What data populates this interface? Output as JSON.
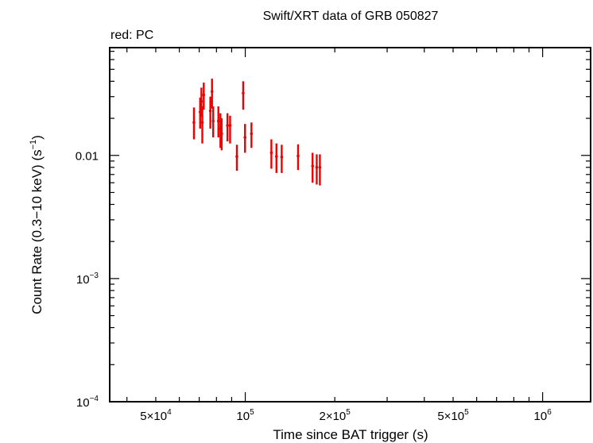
{
  "chart_data": {
    "type": "scatter",
    "title": "Swift/XRT data of GRB 050827",
    "subtitle": "red: PC",
    "xlabel": "Time since BAT trigger (s)",
    "ylabel_parts": {
      "main": "Count Rate (0.3−10 keV) (s",
      "sup": "−1",
      "end": ")"
    },
    "xscale": "log",
    "yscale": "log",
    "xlim": [
      35000,
      1450000
    ],
    "ylim": [
      0.0001,
      0.075
    ],
    "x_ticks": [
      {
        "value": 50000,
        "mant": "5×10",
        "exp": "4"
      },
      {
        "value": 100000,
        "mant": "10",
        "exp": "5"
      },
      {
        "value": 200000,
        "mant": "2×10",
        "exp": "5"
      },
      {
        "value": 500000,
        "mant": "5×10",
        "exp": "5"
      },
      {
        "value": 1000000,
        "mant": "10",
        "exp": "6"
      }
    ],
    "y_ticks": [
      {
        "value": 0.01,
        "mant": "0.01",
        "exp": ""
      },
      {
        "value": 0.001,
        "mant": "10",
        "exp": "−3"
      },
      {
        "value": 0.0001,
        "mant": "10",
        "exp": "−4"
      }
    ],
    "color": "#ee0000",
    "series": [
      {
        "points": [
          {
            "x": 67200,
            "y": 0.0185,
            "xlo": 66700,
            "xhi": 67700,
            "ylo": 0.0135,
            "yhi": 0.0245
          },
          {
            "x": 70500,
            "y": 0.0225,
            "xlo": 70100,
            "xhi": 70900,
            "ylo": 0.0165,
            "yhi": 0.0295
          },
          {
            "x": 71200,
            "y": 0.0275,
            "xlo": 70800,
            "xhi": 71600,
            "ylo": 0.0205,
            "yhi": 0.0355
          },
          {
            "x": 71700,
            "y": 0.0185,
            "xlo": 71300,
            "xhi": 72100,
            "ylo": 0.0125,
            "yhi": 0.025
          },
          {
            "x": 72500,
            "y": 0.031,
            "xlo": 72100,
            "xhi": 72900,
            "ylo": 0.0235,
            "yhi": 0.039
          },
          {
            "x": 76300,
            "y": 0.023,
            "xlo": 75900,
            "xhi": 76700,
            "ylo": 0.0165,
            "yhi": 0.03
          },
          {
            "x": 77300,
            "y": 0.033,
            "xlo": 76900,
            "xhi": 77700,
            "ylo": 0.024,
            "yhi": 0.042
          },
          {
            "x": 78000,
            "y": 0.019,
            "xlo": 77600,
            "xhi": 78400,
            "ylo": 0.014,
            "yhi": 0.025
          },
          {
            "x": 81200,
            "y": 0.019,
            "xlo": 80800,
            "xhi": 81600,
            "ylo": 0.014,
            "yhi": 0.025
          },
          {
            "x": 82500,
            "y": 0.0165,
            "xlo": 82100,
            "xhi": 82900,
            "ylo": 0.0115,
            "yhi": 0.022
          },
          {
            "x": 83300,
            "y": 0.015,
            "xlo": 82900,
            "xhi": 83700,
            "ylo": 0.011,
            "yhi": 0.02
          },
          {
            "x": 87100,
            "y": 0.0175,
            "xlo": 86700,
            "xhi": 87500,
            "ylo": 0.013,
            "yhi": 0.022
          },
          {
            "x": 88900,
            "y": 0.0175,
            "xlo": 88500,
            "xhi": 89300,
            "ylo": 0.0125,
            "yhi": 0.021
          },
          {
            "x": 93700,
            "y": 0.0098,
            "xlo": 93200,
            "xhi": 94200,
            "ylo": 0.0075,
            "yhi": 0.0122
          },
          {
            "x": 98400,
            "y": 0.032,
            "xlo": 98000,
            "xhi": 98800,
            "ylo": 0.0235,
            "yhi": 0.04
          },
          {
            "x": 99800,
            "y": 0.014,
            "xlo": 99300,
            "xhi": 100300,
            "ylo": 0.0105,
            "yhi": 0.018
          },
          {
            "x": 104900,
            "y": 0.015,
            "xlo": 104300,
            "xhi": 105500,
            "ylo": 0.0115,
            "yhi": 0.0185
          },
          {
            "x": 122400,
            "y": 0.0105,
            "xlo": 121800,
            "xhi": 123000,
            "ylo": 0.0078,
            "yhi": 0.0135
          },
          {
            "x": 127300,
            "y": 0.0098,
            "xlo": 126700,
            "xhi": 127900,
            "ylo": 0.0072,
            "yhi": 0.0125
          },
          {
            "x": 132600,
            "y": 0.0097,
            "xlo": 132000,
            "xhi": 133200,
            "ylo": 0.0072,
            "yhi": 0.0122
          },
          {
            "x": 150500,
            "y": 0.0099,
            "xlo": 149800,
            "xhi": 151200,
            "ylo": 0.0076,
            "yhi": 0.0123
          },
          {
            "x": 168400,
            "y": 0.0082,
            "xlo": 167600,
            "xhi": 169200,
            "ylo": 0.006,
            "yhi": 0.0105
          },
          {
            "x": 173900,
            "y": 0.008,
            "xlo": 173100,
            "xhi": 174700,
            "ylo": 0.0058,
            "yhi": 0.0102
          },
          {
            "x": 178200,
            "y": 0.008,
            "xlo": 177400,
            "xhi": 179000,
            "ylo": 0.0057,
            "yhi": 0.0102
          }
        ]
      }
    ]
  }
}
